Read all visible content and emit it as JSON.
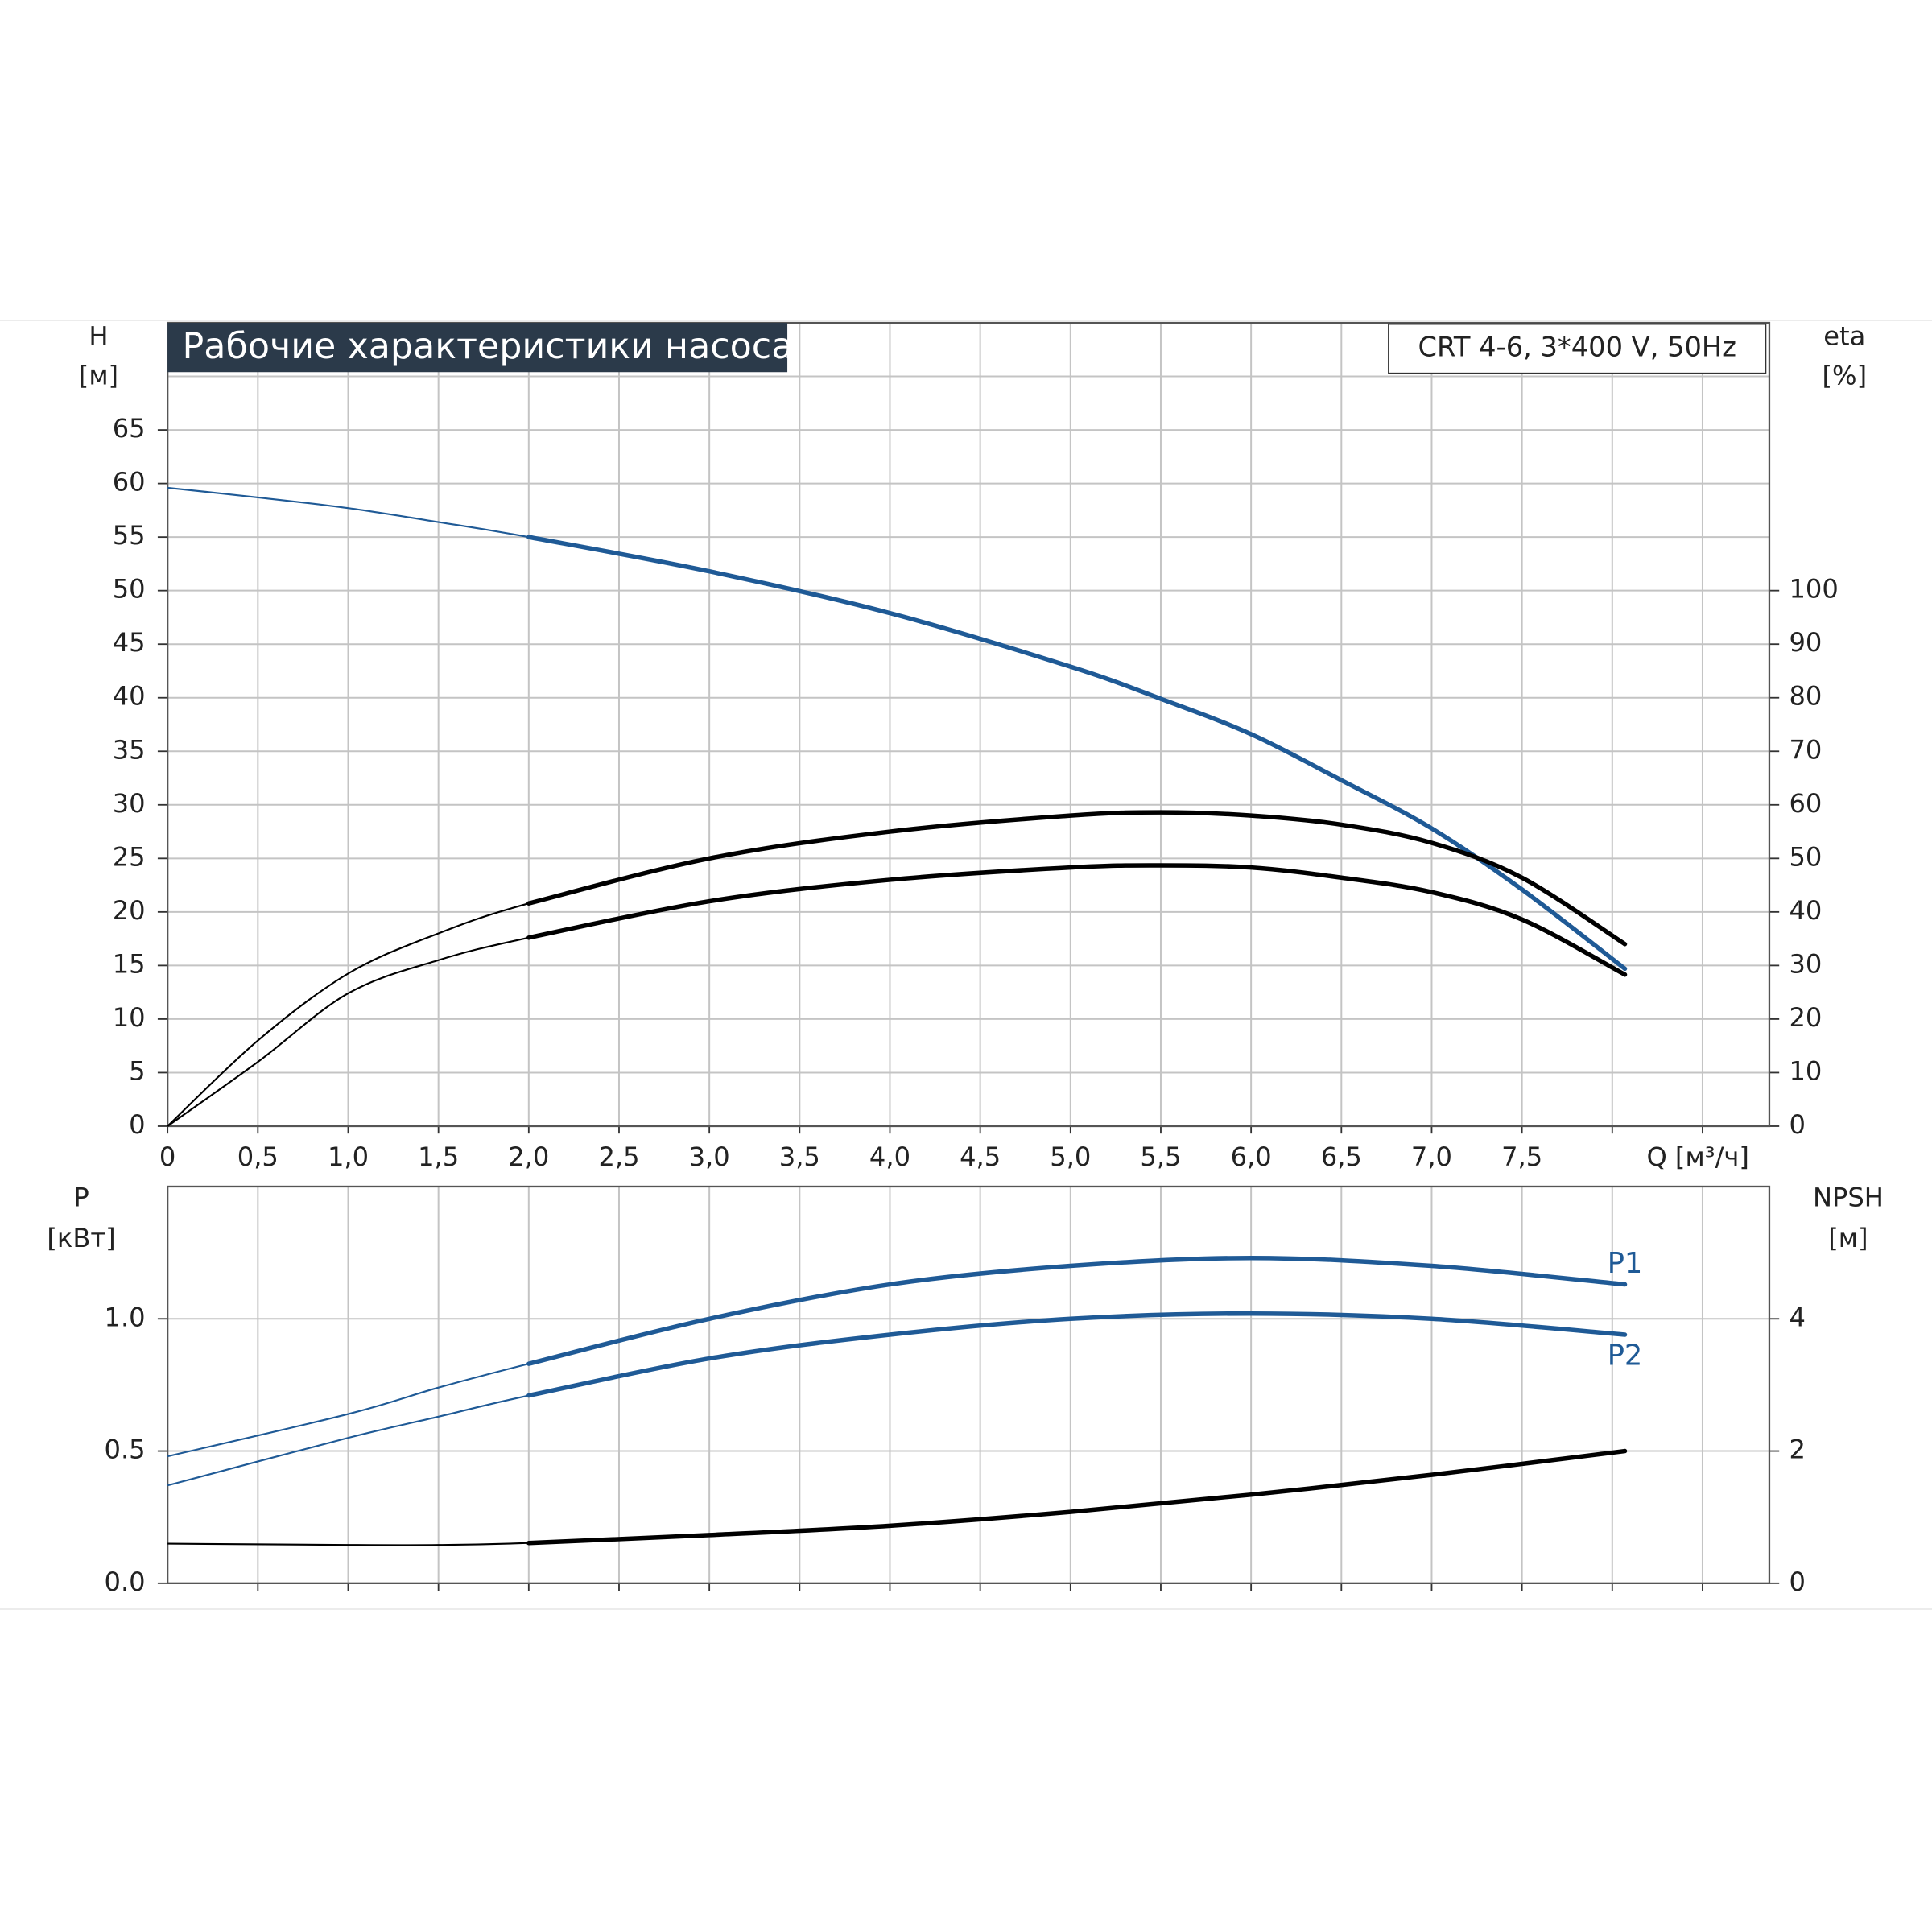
{
  "chart_data": [
    {
      "type": "line",
      "title": "Рабочие характеристики насоса",
      "subtitle": "CRT 4-6, 3*400 V, 50Hz",
      "ylabel": "H",
      "ylabel_unit": "[м]",
      "y2label": "eta",
      "y2label_unit": "[%]",
      "xlabel": "Q [м³/ч]",
      "x": [
        0,
        0.5,
        1,
        1.5,
        2,
        3,
        4,
        5,
        5.5,
        6,
        6.5,
        7,
        7.5,
        8.07
      ],
      "series": [
        {
          "color": "#1f5a96",
          "values": [
            59.6,
            58.7,
            57.7,
            56.4,
            55.0,
            51.8,
            47.9,
            42.9,
            39.9,
            36.6,
            32.3,
            27.8,
            22.1,
            14.7
          ]
        },
        {
          "color": "#000000",
          "axis": "y2",
          "values": [
            0,
            16,
            28.5,
            36,
            41.6,
            50,
            55,
            58,
            58.6,
            58,
            56.3,
            52.9,
            46.4,
            34
          ]
        },
        {
          "color": "#000000",
          "axis": "y2",
          "values": [
            0,
            12,
            24.8,
            31,
            35.2,
            42,
            46,
            48.3,
            48.7,
            48.3,
            46.4,
            43.7,
            38.6,
            28.3
          ]
        }
      ],
      "duty_from": 2,
      "xlim": [
        0,
        8.87
      ],
      "xticks": [
        0,
        {
          "value": 0.5,
          "label": "0,5"
        },
        {
          "value": 1,
          "label": "1,0"
        },
        {
          "value": 1.5,
          "label": "1,5"
        },
        {
          "value": 2,
          "label": "2,0"
        },
        {
          "value": 2.5,
          "label": "2,5"
        },
        {
          "value": 3,
          "label": "3,0"
        },
        {
          "value": 3.5,
          "label": "3,5"
        },
        {
          "value": 4,
          "label": "4,0"
        },
        {
          "value": 4.5,
          "label": "4,5"
        },
        {
          "value": 5,
          "label": "5,0"
        },
        {
          "value": 5.5,
          "label": "5,5"
        },
        {
          "value": 6,
          "label": "6,0"
        },
        {
          "value": 6.5,
          "label": "6,5"
        },
        {
          "value": 7,
          "label": "7,0"
        },
        {
          "value": 7.5,
          "label": "7,5"
        }
      ],
      "xgrid": [
        8,
        8.5
      ],
      "ylim": [
        0,
        75
      ],
      "yticks": [
        0,
        5,
        10,
        15,
        20,
        25,
        30,
        35,
        40,
        45,
        50,
        55,
        60,
        65
      ],
      "ygrid": [
        70
      ],
      "y2lim": [
        0,
        150
      ],
      "y2ticks": [
        0,
        10,
        20,
        30,
        40,
        50,
        60,
        70,
        80,
        90,
        100
      ],
      "grid": true
    },
    {
      "type": "line",
      "ylabel": "P",
      "ylabel_unit": "[кВт]",
      "y2label": "NPSH",
      "y2label_unit": "[м]",
      "x": [
        0,
        1,
        1.5,
        2,
        3,
        4,
        5,
        6,
        7,
        8.07
      ],
      "series": [
        {
          "name": "P1",
          "color": "#1f5a96",
          "values": [
            0.48,
            0.64,
            0.74,
            0.83,
            1.0,
            1.13,
            1.2,
            1.23,
            1.2,
            1.13
          ]
        },
        {
          "name": "P2",
          "color": "#1f5a96",
          "values": [
            0.37,
            0.55,
            0.63,
            0.71,
            0.85,
            0.94,
            1.0,
            1.02,
            1.0,
            0.94
          ]
        },
        {
          "color": "#000000",
          "axis": "y2",
          "values": [
            0.6,
            0.58,
            0.58,
            0.61,
            0.73,
            0.87,
            1.08,
            1.34,
            1.64,
            2.0
          ]
        }
      ],
      "duty_from": 2,
      "legend": "line-end",
      "xlim": [
        0,
        8.87
      ],
      "xgrid": [
        0.5,
        1,
        1.5,
        2,
        2.5,
        3,
        3.5,
        4,
        4.5,
        5,
        5.5,
        6,
        6.5,
        7,
        7.5,
        8,
        8.5
      ],
      "ylim": [
        0,
        1.5
      ],
      "yticks": [
        {
          "value": 0,
          "label": "0.0"
        },
        0.5,
        {
          "value": 1,
          "label": "1.0"
        }
      ],
      "y2lim": [
        0,
        6
      ],
      "y2ticks": [
        0,
        2,
        4
      ],
      "grid": true
    }
  ]
}
